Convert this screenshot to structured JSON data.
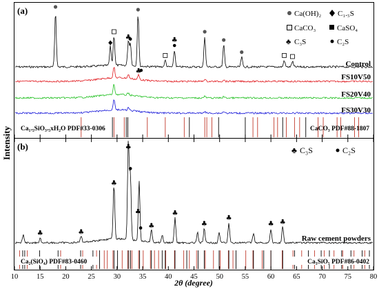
{
  "figure": {
    "ylabel": "Intensity",
    "xlabel": "2θ (degree)",
    "xlim": [
      10,
      80
    ],
    "xticks": [
      "10",
      "15",
      "20",
      "25",
      "30",
      "35",
      "40",
      "45",
      "50",
      "55",
      "60",
      "65",
      "70",
      "75",
      "80"
    ]
  },
  "panel_a": {
    "label": "(a)",
    "legend": [
      {
        "marker": "filled-circle",
        "text": "Ca(OH)₂"
      },
      {
        "marker": "diamond",
        "text": "C₁.₅S"
      },
      {
        "marker": "open-square",
        "text": "CaCO₃"
      },
      {
        "marker": "filled-square",
        "text": "CaSO₄"
      },
      {
        "marker": "club",
        "text": "C₃S"
      },
      {
        "marker": "dot",
        "text": "C₂S"
      }
    ],
    "curves": [
      {
        "name": "Control",
        "color": "#000000"
      },
      {
        "name": "FS10V50",
        "color": "#e0161b"
      },
      {
        "name": "FS20V40",
        "color": "#1fbf1f"
      },
      {
        "name": "FS30V30",
        "color": "#1414d8"
      }
    ],
    "pdf_left": "Ca₁.₅SiO₃.₅xH₂O PDF#33-0306",
    "pdf_right": "CaCO₃ PDF#88-1807"
  },
  "panel_b": {
    "label": "(b)",
    "legend": [
      {
        "marker": "club",
        "text": "C₃S"
      },
      {
        "marker": "dot",
        "text": "C₂S"
      }
    ],
    "curves": [
      {
        "name": "Raw cement powders",
        "color": "#000000"
      }
    ],
    "pdf_left": "Ca₂(SiO₄) PDF#83-0460",
    "pdf_right": "Ca₃SiO₅ PDF#86-0402"
  },
  "chart_data": [
    {
      "type": "line",
      "title": "(a)",
      "xlabel": "2θ (degree)",
      "ylabel": "Intensity",
      "xlim": [
        10,
        80
      ],
      "series": [
        {
          "name": "Control",
          "x": [
            18.0,
            28.7,
            29.4,
            32.2,
            32.6,
            34.1,
            39.4,
            41.2,
            47.1,
            50.8,
            54.3,
            62.6,
            64.2
          ],
          "y": [
            1.0,
            0.35,
            0.55,
            0.45,
            0.4,
            0.95,
            0.12,
            0.3,
            0.55,
            0.4,
            0.18,
            0.12,
            0.1
          ]
        },
        {
          "name": "FS10V50",
          "x": [
            29.4,
            32.2,
            34.2,
            47.1,
            50.8
          ],
          "y": [
            0.35,
            0.12,
            0.15,
            0.08,
            0.06
          ]
        },
        {
          "name": "FS20V40",
          "x": [
            29.4,
            32.2,
            47.1,
            50.8
          ],
          "y": [
            0.35,
            0.08,
            0.06,
            0.05
          ]
        },
        {
          "name": "FS30V30",
          "x": [
            29.4,
            32.2,
            47.1,
            50.8
          ],
          "y": [
            0.4,
            0.1,
            0.07,
            0.06
          ]
        }
      ],
      "peak_markers": [
        {
          "x": 18.0,
          "marker": "filled-circle"
        },
        {
          "x": 28.7,
          "marker": "diamond"
        },
        {
          "x": 29.4,
          "marker": "open-square"
        },
        {
          "x": 32.2,
          "marker": "club"
        },
        {
          "x": 32.6,
          "marker": "dot"
        },
        {
          "x": 34.1,
          "marker": "filled-circle"
        },
        {
          "x": 39.4,
          "marker": "open-square"
        },
        {
          "x": 41.2,
          "marker": "dot"
        },
        {
          "x": 41.2,
          "marker": "club"
        },
        {
          "x": 47.1,
          "marker": "filled-circle"
        },
        {
          "x": 50.8,
          "marker": "filled-circle"
        },
        {
          "x": 54.3,
          "marker": "filled-circle"
        },
        {
          "x": 62.6,
          "marker": "open-square"
        },
        {
          "x": 64.2,
          "marker": "open-square"
        },
        {
          "x": 34.2,
          "marker": "club"
        },
        {
          "x": 34.7,
          "marker": "dot"
        }
      ],
      "reference_lines": [
        {
          "name": "Ca₁.₅SiO₃.₅xH₂O PDF#33-0306",
          "color": "#000000",
          "x": [
            29.1,
            31.8,
            32.1,
            44.1,
            49.8,
            55.0,
            62.3,
            66.8
          ]
        },
        {
          "name": "CaCO₃ PDF#88-1807",
          "color": "#c0392b",
          "x": [
            23.0,
            29.4,
            31.4,
            35.9,
            39.4,
            43.1,
            47.1,
            47.5,
            48.5,
            56.5,
            57.4,
            60.6,
            61.3,
            63.0,
            64.6,
            65.6,
            69.2,
            70.2,
            72.9,
            73.6,
            76.3,
            77.1
          ]
        }
      ]
    },
    {
      "type": "line",
      "title": "(b)",
      "xlabel": "2θ (degree)",
      "ylabel": "Intensity",
      "xlim": [
        10,
        80
      ],
      "series": [
        {
          "name": "Raw cement powders",
          "x": [
            11.7,
            15.0,
            23.0,
            29.4,
            32.2,
            32.6,
            34.3,
            36.7,
            38.8,
            41.3,
            45.7,
            47.0,
            49.9,
            51.8,
            56.6,
            60.0,
            62.3
          ],
          "y": [
            0.08,
            0.05,
            0.06,
            0.55,
            1.0,
            0.65,
            0.6,
            0.12,
            0.08,
            0.25,
            0.1,
            0.14,
            0.1,
            0.2,
            0.1,
            0.14,
            0.16
          ]
        }
      ],
      "peak_markers": [
        {
          "x": 15.0,
          "marker": "club"
        },
        {
          "x": 23.0,
          "marker": "club"
        },
        {
          "x": 29.4,
          "marker": "club"
        },
        {
          "x": 32.2,
          "marker": "club"
        },
        {
          "x": 32.6,
          "marker": "dot"
        },
        {
          "x": 34.1,
          "marker": "club"
        },
        {
          "x": 34.6,
          "marker": "dot"
        },
        {
          "x": 36.7,
          "marker": "club"
        },
        {
          "x": 41.3,
          "marker": "club"
        },
        {
          "x": 47.0,
          "marker": "club"
        },
        {
          "x": 51.8,
          "marker": "club"
        },
        {
          "x": 60.0,
          "marker": "club"
        },
        {
          "x": 62.3,
          "marker": "club"
        }
      ],
      "reference_lines": [
        {
          "name": "Ca₂(SiO₄) PDF#83-0460",
          "color": "#c0392b",
          "x": [
            11.0,
            12.5,
            19.0,
            23.3,
            26.0,
            27.5,
            28.1,
            29.2,
            31.0,
            32.1,
            32.6,
            32.9,
            34.2,
            35.1,
            36.5,
            37.3,
            38.1,
            39.5,
            41.2,
            43.0,
            44.1,
            45.5,
            47.2,
            48.8,
            50.1,
            51.7,
            52.6,
            55.1,
            56.5,
            58.3,
            60.0,
            62.2,
            64.3,
            66.0,
            68.5,
            70.4,
            72.3,
            74.0,
            76.2,
            78.3
          ]
        },
        {
          "name": "Ca₃SiO₅ PDF#86-0402",
          "color": "#000000",
          "x": [
            11.6,
            12.0,
            14.9,
            18.5,
            22.9,
            25.3,
            26.6,
            29.4,
            30.1,
            32.2,
            32.6,
            34.4,
            36.7,
            38.8,
            39.4,
            41.3,
            43.6,
            45.8,
            47.0,
            49.9,
            51.8,
            53.2,
            56.6,
            58.6,
            60.0,
            62.3,
            64.6,
            67.3,
            69.8,
            71.4,
            73.8,
            75.6,
            77.8,
            79.2
          ]
        }
      ]
    }
  ]
}
